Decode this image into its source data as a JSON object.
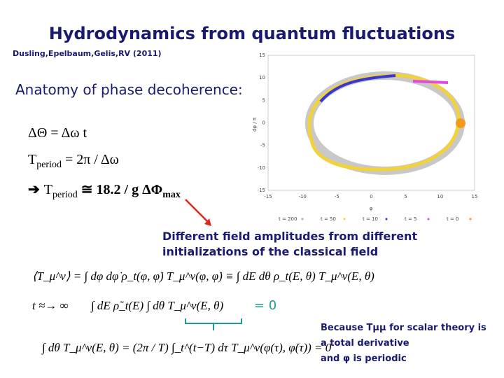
{
  "header": {
    "title": "Hydrodynamics from quantum fluctuations",
    "citation": "Dusling,Epelbaum,Gelis,RV (2011)"
  },
  "section": {
    "heading": "Anatomy of phase decoherence:",
    "formulas": [
      {
        "lhs": "ΔΘ = Δω t"
      },
      {
        "base": "T",
        "sub": "period",
        "rest": " = 2π /  Δω"
      },
      {
        "arrow": "➔",
        "base": "T",
        "sub": "period",
        "rest": " ≅ 18.2 / g ΔΦ",
        "sub2": "max"
      }
    ]
  },
  "plot": {
    "y_label": "dφ / π",
    "x_label": "φ",
    "y_ticks": [
      "15",
      "10",
      "5",
      "0",
      "-5",
      "-10",
      "-15"
    ],
    "x_ticks": [
      "-15",
      "-10",
      "-5",
      "0",
      "5",
      "10",
      "15"
    ],
    "legend": [
      "t = 200",
      "t = 50",
      "t = 10",
      "t = 5",
      "t = 0"
    ]
  },
  "caption": {
    "lines": [
      "Different field amplitudes from different",
      "initializations of the classical field"
    ]
  },
  "equations": {
    "line1": "⟨T_μ^ν⟩ = ∫ dφ dφ̇ ρ_t(φ, φ̇) T_μ^ν(φ, φ̇) ≡ ∫ dE dθ ρ_t(E, θ) T_μ^ν(E, θ)",
    "line2_lhs": "t ≈→ ∞",
    "line2": "∫ dE ρ̃_t(E) ∫ dθ T_μ^ν(E, θ)",
    "line2_result": "= 0",
    "line3": "∫ dθ T_μ^ν(E, θ) = (2π / T) ∫_t^(t−T) dτ T_μ^ν(φ(τ), φ̇(τ)) = 0"
  },
  "note": {
    "lines": [
      "Because Tμμ  for scalar theory is",
      "a total derivative",
      "and φ is periodic"
    ]
  }
}
